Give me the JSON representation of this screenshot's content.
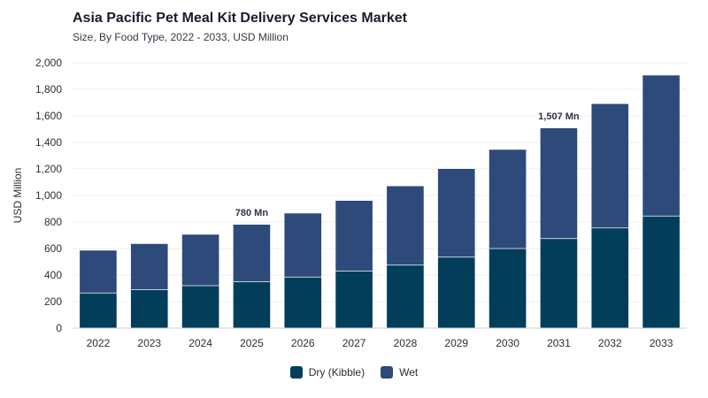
{
  "header": {
    "title": "Asia Pacific Pet Meal Kit Delivery Services Market",
    "subtitle": "Size, By Food Type, 2022 - 2033, USD Million"
  },
  "colors": {
    "dry": "#023e5a",
    "wet": "#2d4a7a",
    "grid": "#ececec",
    "axis": "#cfcfcf"
  },
  "chart_data": {
    "type": "bar",
    "stacked": true,
    "categories": [
      "2022",
      "2023",
      "2024",
      "2025",
      "2026",
      "2027",
      "2028",
      "2029",
      "2030",
      "2031",
      "2032",
      "2033"
    ],
    "series": [
      {
        "name": "Dry (Kibble)",
        "values": [
          265,
          290,
          320,
          350,
          385,
          430,
          475,
          535,
          600,
          675,
          755,
          845
        ]
      },
      {
        "name": "Wet",
        "values": [
          320,
          345,
          385,
          430,
          480,
          530,
          595,
          665,
          745,
          832,
          935,
          1060
        ]
      }
    ],
    "ylabel": "USD Million",
    "ylim": [
      0,
      2000
    ],
    "yticks": [
      0,
      200,
      400,
      600,
      800,
      1000,
      1200,
      1400,
      1600,
      1800,
      2000
    ],
    "ytick_labels": [
      "0",
      "200",
      "400",
      "600",
      "800",
      "1,000",
      "1,200",
      "1,400",
      "1,600",
      "1,800",
      "2,000"
    ],
    "annotations": [
      {
        "category": "2025",
        "text": "780 Mn"
      },
      {
        "category": "2031",
        "text": "1,507 Mn"
      }
    ],
    "grid": true,
    "legend_position": "bottom-center"
  }
}
